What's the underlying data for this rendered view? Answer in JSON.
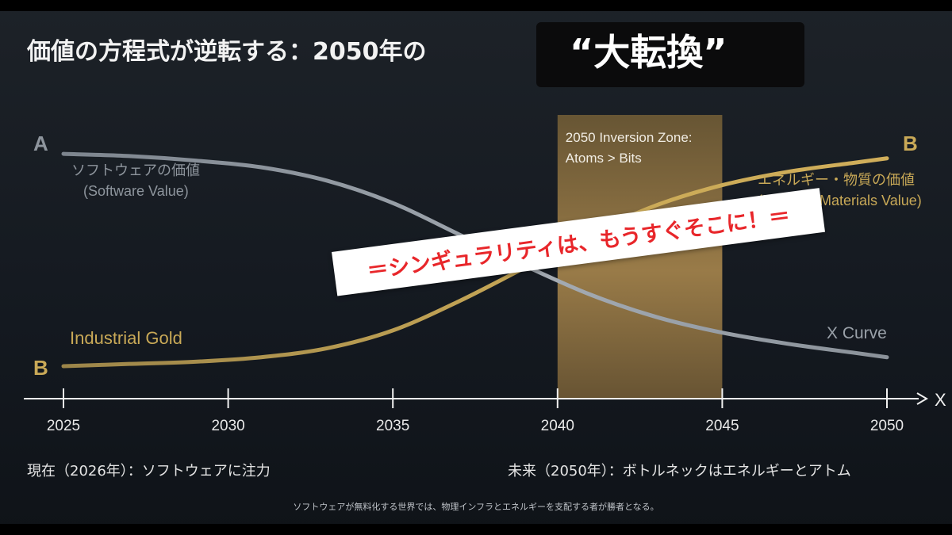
{
  "title": {
    "main": "価値の方程式が逆転する：2050年の",
    "highlight": "“大転換”"
  },
  "chart_data": {
    "type": "line",
    "x_label": "X",
    "xlim": [
      2025,
      2050
    ],
    "ticks": [
      2025,
      2030,
      2035,
      2040,
      2045,
      2050
    ],
    "tick_labels": [
      "2025",
      "2030",
      "2035",
      "2040",
      "2045",
      "2050"
    ],
    "grid": false,
    "series": [
      {
        "name": "ソフトウェアの価値",
        "key": "software",
        "start_marker": "A",
        "label_en": "(Software Value)",
        "end_label": "X Curve",
        "color": "#8e959d",
        "x": [
          2025,
          2027,
          2029,
          2031,
          2033,
          2035,
          2037,
          2039,
          2041,
          2043,
          2045,
          2047,
          2049,
          2050
        ],
        "y": [
          0.95,
          0.94,
          0.92,
          0.89,
          0.83,
          0.73,
          0.59,
          0.45,
          0.32,
          0.22,
          0.15,
          0.1,
          0.06,
          0.04
        ]
      },
      {
        "name": "エネルギー・物質の価値",
        "key": "energy",
        "start_marker": "B",
        "end_marker": "B",
        "start_label": "Industrial Gold",
        "label_en": "(Energy / Materials Value)",
        "color": "#b89a4a",
        "x": [
          2025,
          2027,
          2029,
          2031,
          2033,
          2035,
          2037,
          2039,
          2041,
          2043,
          2045,
          2047,
          2049,
          2050
        ],
        "y": [
          0.0,
          0.01,
          0.02,
          0.04,
          0.08,
          0.16,
          0.29,
          0.44,
          0.59,
          0.72,
          0.81,
          0.87,
          0.91,
          0.93
        ]
      }
    ],
    "zone": {
      "from": 2040,
      "to": 2045,
      "label_line1": "2050 Inversion Zone:",
      "label_line2": "Atoms > Bits",
      "color": "#a9874a"
    }
  },
  "banner": {
    "text": "＝シンギュラリティは、もうすぐそこに！＝"
  },
  "captions": {
    "present": "現在（2026年）：ソフトウェアに注力",
    "future": "未来（2050年）：ボトルネックはエネルギーとアトム"
  },
  "footnote": "ソフトウェアが無料化する世界では、物理インフラとエネルギーを支配する者が勝者となる。"
}
